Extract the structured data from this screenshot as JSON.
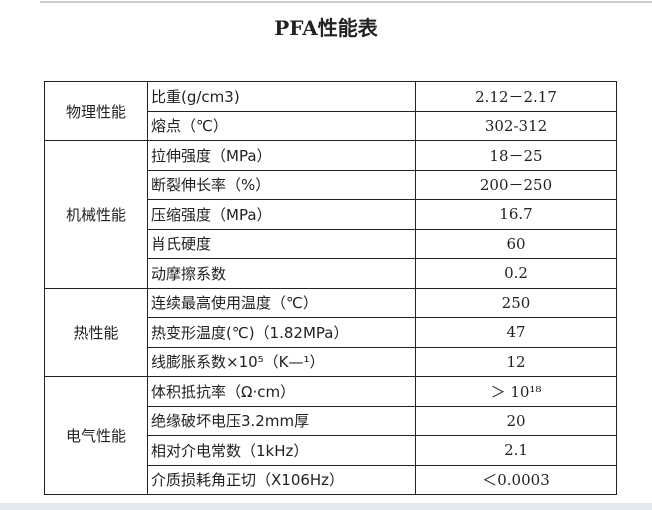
{
  "title": "PFA性能表",
  "groups": [
    {
      "name": "物理性能",
      "rows": [
        [
          "比重(g/cm3)",
          "2.12－2.17"
        ],
        [
          "熔点（℃）",
          "302-312"
        ]
      ]
    },
    {
      "name": "机械性能",
      "rows": [
        [
          "拉伸强度（MPa）",
          "18－25"
        ],
        [
          "断裂伸长率（%）",
          "200－250"
        ],
        [
          "压缩强度（MPa）",
          "16.7"
        ],
        [
          "肖氏硬度",
          "60"
        ],
        [
          "动摩擦系数",
          "0.2"
        ]
      ]
    },
    {
      "name": "热性能",
      "rows": [
        [
          "连续最高使用温度（℃）",
          "250"
        ],
        [
          "热变形温度(℃)（1.82MPa）",
          "47"
        ],
        [
          "线膨胀系数×10⁵（K—¹）",
          "12"
        ]
      ]
    },
    {
      "name": "电气性能",
      "rows": [
        [
          "体积抵抗率（Ω·cm）",
          "＞ 10¹⁸"
        ],
        [
          "绝缘破坏电压3.2mm厚",
          "20"
        ],
        [
          "相对介电常数（1kHz）",
          "2.1"
        ],
        [
          "介质损耗角正切（X106Hz）",
          "＜0.0003"
        ]
      ]
    }
  ]
}
